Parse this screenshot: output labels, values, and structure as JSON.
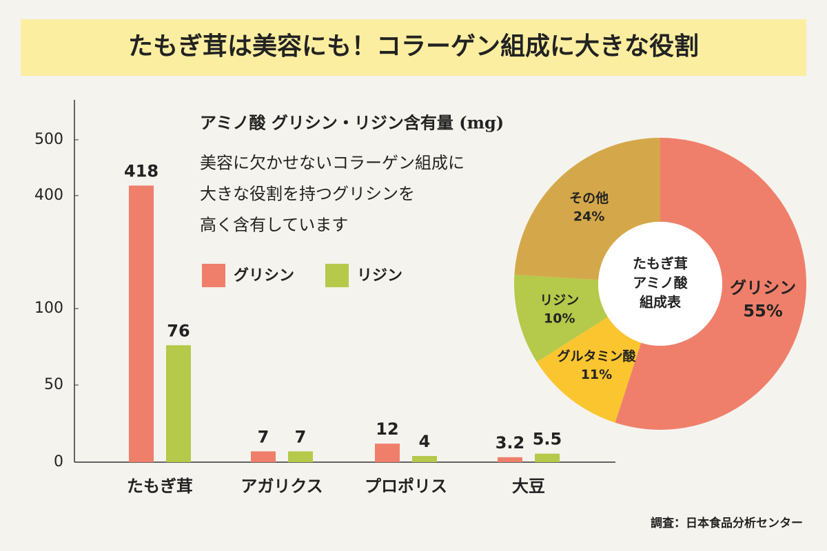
{
  "title": "たもぎ茸は美容にも！コラーゲン組成に大きな役割",
  "source": "調査：日本食品分析センター",
  "chart_data": [
    {
      "type": "bar",
      "title": "アミノ酸 グリシン・リジン含有量 (mg)",
      "description": [
        "美容に欠かせないコラーゲン組成に",
        "大きな役割を持つグリシンを",
        "高く含有しています"
      ],
      "categories": [
        "たもぎ茸",
        "アガリクス",
        "プロポリス",
        "大豆"
      ],
      "series": [
        {
          "name": "グリシン",
          "color": "#ef7f6a",
          "values": [
            418,
            7,
            12,
            3.2
          ]
        },
        {
          "name": "リジン",
          "color": "#b5c94a",
          "values": [
            76,
            7,
            4,
            5.5
          ]
        }
      ],
      "ylim": [
        0,
        570
      ],
      "yticks": [
        0,
        50,
        100,
        400,
        500
      ],
      "yscale": "broken",
      "legend": true
    },
    {
      "type": "donut",
      "center_label": [
        "たもぎ茸",
        "アミノ酸",
        "組成表"
      ],
      "categories": [
        "グリシン",
        "グルタミン酸",
        "リジン",
        "その他"
      ],
      "values": [
        55,
        11,
        10,
        24
      ],
      "value_labels": [
        "55%",
        "11%",
        "10%",
        "24%"
      ],
      "colors": [
        "#ef7f6a",
        "#fbc530",
        "#b5c94a",
        "#d4a84a"
      ]
    }
  ]
}
